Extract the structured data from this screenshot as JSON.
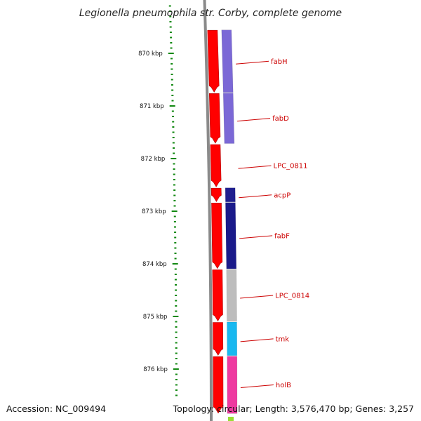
{
  "title": "Legionella pneumophila str. Corby, complete genome",
  "footer": {
    "accession": "Accession: NC_009494",
    "info": "Topology: circular; Length: 3,576,470 bp; Genes: 3,257"
  },
  "ticks": [
    {
      "label": "870 kbp",
      "kbp": 870
    },
    {
      "label": "871 kbp",
      "kbp": 871
    },
    {
      "label": "872 kbp",
      "kbp": 872
    },
    {
      "label": "873 kbp",
      "kbp": 873
    },
    {
      "label": "874 kbp",
      "kbp": 874
    },
    {
      "label": "875 kbp",
      "kbp": 875
    },
    {
      "label": "876 kbp",
      "kbp": 876
    }
  ],
  "genes": [
    {
      "name": "fabH",
      "start_kbp": 869.55,
      "end_kbp": 870.75,
      "color": "#7b68d6"
    },
    {
      "name": "fabD",
      "start_kbp": 870.75,
      "end_kbp": 871.72,
      "color": "#7b68d6"
    },
    {
      "name": "LPC_0811",
      "start_kbp": 871.72,
      "end_kbp": 872.55,
      "color": "#ffffff"
    },
    {
      "name": "acpP",
      "start_kbp": 872.55,
      "end_kbp": 872.83,
      "color": "#1f1f8f"
    },
    {
      "name": "fabF",
      "start_kbp": 872.83,
      "end_kbp": 874.1,
      "color": "#1a1a8a"
    },
    {
      "name": "LPC_0814",
      "start_kbp": 874.1,
      "end_kbp": 875.1,
      "color": "#bdbdbd"
    },
    {
      "name": "tmk",
      "start_kbp": 875.1,
      "end_kbp": 875.75,
      "color": "#18b8f0"
    },
    {
      "name": "holB",
      "start_kbp": 875.75,
      "end_kbp": 876.85,
      "color": "#ee3aa0"
    }
  ],
  "colors": {
    "cds": "#ff0000",
    "backbone": "#8a8a8a",
    "tick": "#118811",
    "label": "#cc0000"
  }
}
